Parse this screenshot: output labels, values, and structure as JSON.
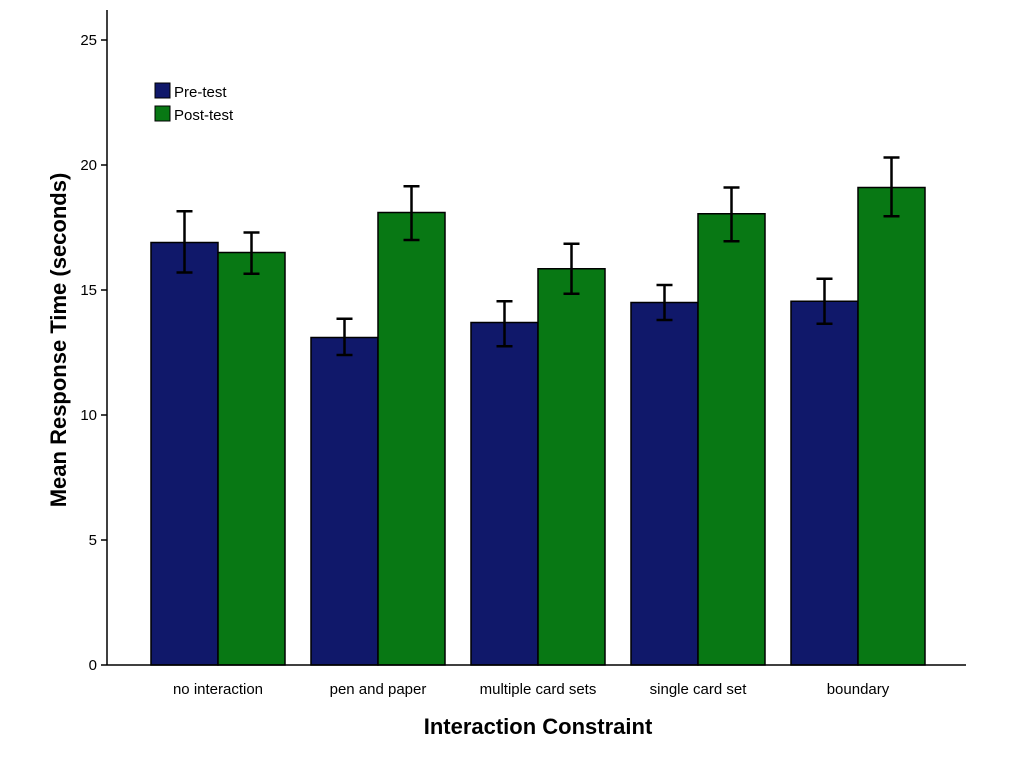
{
  "chart_data": {
    "type": "bar",
    "title": "",
    "xlabel": "Interaction Constraint",
    "ylabel": "Mean Response Time (seconds)",
    "ylim": [
      0,
      26
    ],
    "yticks": [
      "0",
      "5",
      "10",
      "15",
      "20",
      "25"
    ],
    "categories": [
      "no interaction",
      "pen and paper",
      "multiple card sets",
      "single card set",
      "boundary"
    ],
    "series": [
      {
        "name": "Pre-test",
        "color": "#10186a",
        "values": [
          16.9,
          13.1,
          13.7,
          14.5,
          14.55
        ],
        "error_low": [
          15.7,
          12.4,
          12.75,
          13.8,
          13.65
        ],
        "error_high": [
          18.15,
          13.85,
          14.55,
          15.2,
          15.45
        ]
      },
      {
        "name": "Post-test",
        "color": "#087814",
        "values": [
          16.5,
          18.1,
          15.85,
          18.05,
          19.1
        ],
        "error_low": [
          15.65,
          17.0,
          14.85,
          16.95,
          17.95
        ],
        "error_high": [
          17.3,
          19.15,
          16.85,
          19.1,
          20.3
        ]
      }
    ],
    "grid": false,
    "legend_position": "top-left",
    "error_bars": true
  }
}
